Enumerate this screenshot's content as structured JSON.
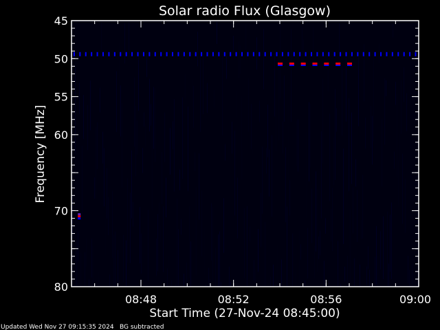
{
  "chart_data": {
    "type": "heatmap",
    "title": "Solar radio Flux (Glasgow)",
    "xlabel": "Start Time (27-Nov-24 08:45:00)",
    "ylabel": "Frequency [MHz]",
    "xlim": [
      "08:45:00",
      "09:00:00"
    ],
    "ylim": [
      45,
      80
    ],
    "y_inverted": true,
    "x_tick_labels": [
      "08:48",
      "08:52",
      "08:56",
      "09:00"
    ],
    "x_tick_minutes": [
      3,
      7,
      11,
      15
    ],
    "y_tick_labels": [
      "45",
      "50",
      "55",
      "60",
      "70",
      "80"
    ],
    "y_tick_values": [
      45,
      50,
      55,
      60,
      70,
      80
    ],
    "colormap": {
      "background": "#000010",
      "low": "#00004a",
      "mid": "#0000ff",
      "high": "#ff0000"
    },
    "features": [
      {
        "kind": "periodic-interference",
        "frequency_mhz": 49.5,
        "start": "08:45:07",
        "end": "08:59:52",
        "period_s": 15,
        "level": "mid"
      },
      {
        "kind": "periodic-interference",
        "frequency_mhz": 50.7,
        "start": "08:54:00",
        "end": "08:57:10",
        "period_s": 30,
        "level": "high"
      },
      {
        "kind": "spot",
        "frequency_mhz": 70.7,
        "time": "08:45:20",
        "level": "high"
      }
    ]
  },
  "footer": {
    "updated": "Updated Wed Nov 27 09:15:35 2024",
    "note": "BG subtracted"
  }
}
